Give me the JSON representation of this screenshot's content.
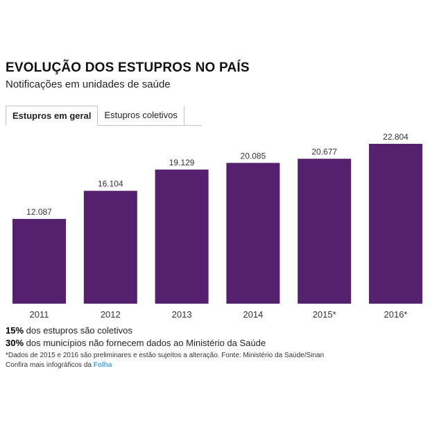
{
  "header": {
    "title": "EVOLUÇÃO DOS ESTUPROS NO PAÍS",
    "subtitle": "Notificações em unidades de saúde"
  },
  "tabs": [
    {
      "label": "Estupros em geral",
      "active": true
    },
    {
      "label": "Estupros coletivos",
      "active": false
    }
  ],
  "chart_data": {
    "type": "bar",
    "categories": [
      "2011",
      "2012",
      "2013",
      "2014",
      "2015*",
      "2016*"
    ],
    "values": [
      12087,
      16104,
      19129,
      20085,
      20677,
      22804
    ],
    "value_labels": [
      "12.087",
      "16.104",
      "19.129",
      "20.085",
      "20.677",
      "22.804"
    ],
    "title": "",
    "xlabel": "",
    "ylabel": "",
    "ylim": [
      0,
      22804
    ],
    "grid": false,
    "legend": "none",
    "bar_color": "#55206e"
  },
  "notes": {
    "line1_bold": "15%",
    "line1_text": " dos estupros são coletivos",
    "line2_bold": "30%",
    "line2_text": " dos municípios não fornecem dados ao Ministério da Saúde",
    "footnote": "*Dados de 2015 e 2016 são preliminares e estão sujeitos a alteração. Fonte: Ministério da Saúde/Sinan",
    "more_text": "Confira mais infográficos da ",
    "more_link": "Folha"
  },
  "colors": {
    "bar": "#55206e",
    "link": "#4aa3df",
    "tab_border": "#bcc3cc"
  }
}
